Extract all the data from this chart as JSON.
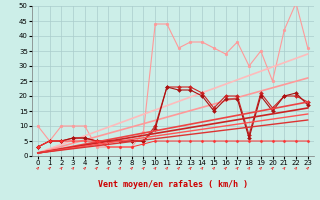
{
  "background_color": "#cceee8",
  "grid_color": "#aacccc",
  "xlabel": "Vent moyen/en rafales ( km/h )",
  "xlim": [
    -0.5,
    23.5
  ],
  "ylim": [
    0,
    50
  ],
  "yticks": [
    0,
    5,
    10,
    15,
    20,
    25,
    30,
    35,
    40,
    45,
    50
  ],
  "xticks": [
    0,
    1,
    2,
    3,
    4,
    5,
    6,
    7,
    8,
    9,
    10,
    11,
    12,
    13,
    14,
    15,
    16,
    17,
    18,
    19,
    20,
    21,
    22,
    23
  ],
  "series": [
    {
      "x": [
        0,
        1,
        2,
        3,
        4,
        5,
        6,
        7,
        8,
        9,
        10,
        11,
        12,
        13,
        14,
        15,
        16,
        17,
        18,
        19,
        20,
        21,
        22,
        23
      ],
      "y": [
        10,
        5,
        10,
        10,
        10,
        3,
        3,
        3,
        3,
        8,
        44,
        44,
        36,
        38,
        38,
        36,
        34,
        38,
        30,
        35,
        25,
        42,
        51,
        36
      ],
      "color": "#ff9999",
      "alpha": 1.0,
      "linewidth": 0.8,
      "marker": "o",
      "markersize": 2.0,
      "linestyle": "-"
    },
    {
      "x": [
        0,
        23
      ],
      "y": [
        1,
        34
      ],
      "color": "#ffbbbb",
      "alpha": 1.0,
      "linewidth": 1.2,
      "marker": null,
      "markersize": 0,
      "linestyle": "-"
    },
    {
      "x": [
        0,
        23
      ],
      "y": [
        1,
        26
      ],
      "color": "#ff9999",
      "alpha": 1.0,
      "linewidth": 1.2,
      "marker": null,
      "markersize": 0,
      "linestyle": "-"
    },
    {
      "x": [
        0,
        1,
        2,
        3,
        4,
        5,
        6,
        7,
        8,
        9,
        10,
        11,
        12,
        13,
        14,
        15,
        16,
        17,
        18,
        19,
        20,
        21,
        22,
        23
      ],
      "y": [
        3,
        5,
        5,
        6,
        6,
        5,
        5,
        5,
        5,
        5,
        10,
        23,
        23,
        23,
        21,
        16,
        20,
        20,
        7,
        21,
        16,
        20,
        20,
        18
      ],
      "color": "#cc2222",
      "alpha": 1.0,
      "linewidth": 0.8,
      "marker": "D",
      "markersize": 2.0,
      "linestyle": "-"
    },
    {
      "x": [
        0,
        1,
        2,
        3,
        4,
        5,
        6,
        7,
        8,
        9,
        10,
        11,
        12,
        13,
        14,
        15,
        16,
        17,
        18,
        19,
        20,
        21,
        22,
        23
      ],
      "y": [
        3,
        5,
        5,
        6,
        6,
        5,
        5,
        5,
        5,
        5,
        9,
        23,
        22,
        22,
        20,
        15,
        19,
        19,
        6,
        20,
        15,
        20,
        21,
        17
      ],
      "color": "#aa1111",
      "alpha": 1.0,
      "linewidth": 0.8,
      "marker": "D",
      "markersize": 2.0,
      "linestyle": "-"
    },
    {
      "x": [
        0,
        23
      ],
      "y": [
        1,
        18
      ],
      "color": "#ee4444",
      "alpha": 1.0,
      "linewidth": 1.2,
      "marker": null,
      "markersize": 0,
      "linestyle": "-"
    },
    {
      "x": [
        0,
        23
      ],
      "y": [
        1,
        16
      ],
      "color": "#cc2222",
      "alpha": 1.0,
      "linewidth": 1.2,
      "marker": null,
      "markersize": 0,
      "linestyle": "-"
    },
    {
      "x": [
        0,
        1,
        2,
        3,
        4,
        5,
        6,
        7,
        8,
        9,
        10,
        11,
        12,
        13,
        14,
        15,
        16,
        17,
        18,
        19,
        20,
        21,
        22,
        23
      ],
      "y": [
        3,
        5,
        5,
        5,
        5,
        5,
        3,
        3,
        3,
        4,
        5,
        5,
        5,
        5,
        5,
        5,
        5,
        5,
        5,
        5,
        5,
        5,
        5,
        5
      ],
      "color": "#ff3333",
      "alpha": 1.0,
      "linewidth": 0.7,
      "marker": "D",
      "markersize": 1.5,
      "linestyle": "-"
    },
    {
      "x": [
        0,
        23
      ],
      "y": [
        1,
        14
      ],
      "color": "#ff5555",
      "alpha": 1.0,
      "linewidth": 1.0,
      "marker": null,
      "markersize": 0,
      "linestyle": "-"
    },
    {
      "x": [
        0,
        23
      ],
      "y": [
        1,
        12
      ],
      "color": "#dd3333",
      "alpha": 1.0,
      "linewidth": 1.0,
      "marker": null,
      "markersize": 0,
      "linestyle": "-"
    }
  ],
  "arrow_color": "#ee2222",
  "xlabel_color": "#cc0000",
  "xlabel_fontsize": 6.0,
  "tick_fontsize": 5.0
}
